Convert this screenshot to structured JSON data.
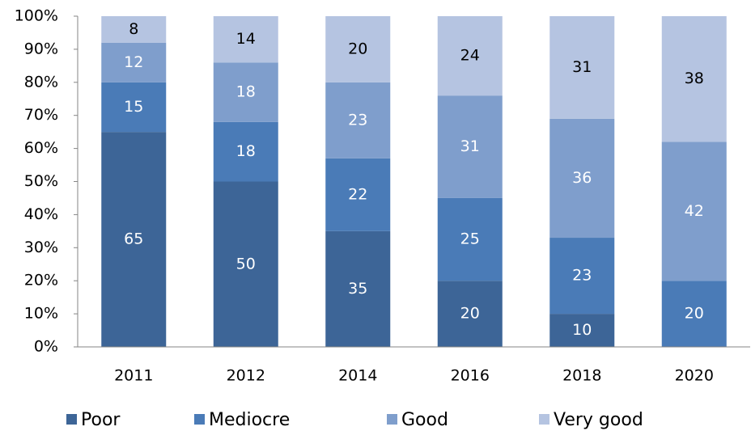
{
  "chart_data": {
    "type": "stacked_bar",
    "categories": [
      "2011",
      "2012",
      "2014",
      "2016",
      "2018",
      "2020"
    ],
    "series": [
      {
        "name": "Poor",
        "color": "#3d6597",
        "values": [
          65,
          50,
          35,
          20,
          10,
          0
        ]
      },
      {
        "name": "Mediocre",
        "color": "#4a7bb7",
        "values": [
          15,
          18,
          22,
          25,
          23,
          20
        ]
      },
      {
        "name": "Good",
        "color": "#7f9ecc",
        "values": [
          12,
          18,
          23,
          31,
          36,
          42
        ]
      },
      {
        "name": "Very good",
        "color": "#b5c4e1",
        "values": [
          8,
          14,
          20,
          24,
          31,
          38
        ]
      }
    ],
    "ylim": [
      0,
      100
    ],
    "yticks": [
      {
        "value": 0,
        "label": "0%"
      },
      {
        "value": 10,
        "label": "10%"
      },
      {
        "value": 20,
        "label": "20%"
      },
      {
        "value": 30,
        "label": "30%"
      },
      {
        "value": 40,
        "label": "40%"
      },
      {
        "value": 50,
        "label": "50%"
      },
      {
        "value": 60,
        "label": "60%"
      },
      {
        "value": 70,
        "label": "70%"
      },
      {
        "value": 80,
        "label": "80%"
      },
      {
        "value": 90,
        "label": "90%"
      },
      {
        "value": 100,
        "label": "100%"
      }
    ],
    "grid": false,
    "legend": "bottom"
  }
}
